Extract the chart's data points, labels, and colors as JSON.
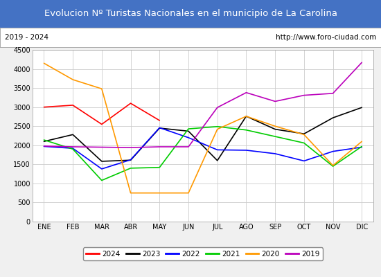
{
  "title": "Evolucion Nº Turistas Nacionales en el municipio de La Carolina",
  "subtitle_left": "2019 - 2024",
  "subtitle_right": "http://www.foro-ciudad.com",
  "title_bg_color": "#4472c4",
  "title_text_color": "white",
  "months": [
    "ENE",
    "FEB",
    "MAR",
    "ABR",
    "MAY",
    "JUN",
    "JUL",
    "AGO",
    "SEP",
    "OCT",
    "NOV",
    "DIC"
  ],
  "ylim": [
    0,
    4500
  ],
  "yticks": [
    0,
    500,
    1000,
    1500,
    2000,
    2500,
    3000,
    3500,
    4000,
    4500
  ],
  "series": {
    "2024": {
      "color": "#ff0000",
      "values": [
        3000,
        3050,
        2550,
        3100,
        2650,
        null,
        null,
        null,
        null,
        null,
        null,
        null
      ]
    },
    "2023": {
      "color": "#000000",
      "values": [
        2100,
        2280,
        1580,
        1610,
        2450,
        2370,
        1600,
        2760,
        2420,
        2300,
        2720,
        2990
      ]
    },
    "2022": {
      "color": "#0000ff",
      "values": [
        1970,
        1920,
        1380,
        1620,
        2460,
        2200,
        1880,
        1870,
        1780,
        1590,
        1840,
        1950
      ]
    },
    "2021": {
      "color": "#00cc00",
      "values": [
        2140,
        1900,
        1080,
        1400,
        1420,
        2430,
        2490,
        2400,
        2230,
        2060,
        1450,
        1970
      ]
    },
    "2020": {
      "color": "#ff9900",
      "values": [
        4150,
        3720,
        3480,
        750,
        750,
        750,
        2420,
        2760,
        2500,
        2280,
        1470,
        2100
      ]
    },
    "2019": {
      "color": "#bb00bb",
      "values": [
        1980,
        1960,
        1950,
        1940,
        1960,
        1960,
        2990,
        3380,
        3150,
        3310,
        3360,
        4170
      ]
    }
  },
  "legend_order": [
    "2024",
    "2023",
    "2022",
    "2021",
    "2020",
    "2019"
  ],
  "grid_color": "#cccccc",
  "bg_color": "#f0f0f0",
  "plot_bg_color": "#ffffff",
  "title_fontsize": 9.5,
  "subtitle_fontsize": 7.5,
  "tick_fontsize": 7,
  "legend_fontsize": 7.5
}
